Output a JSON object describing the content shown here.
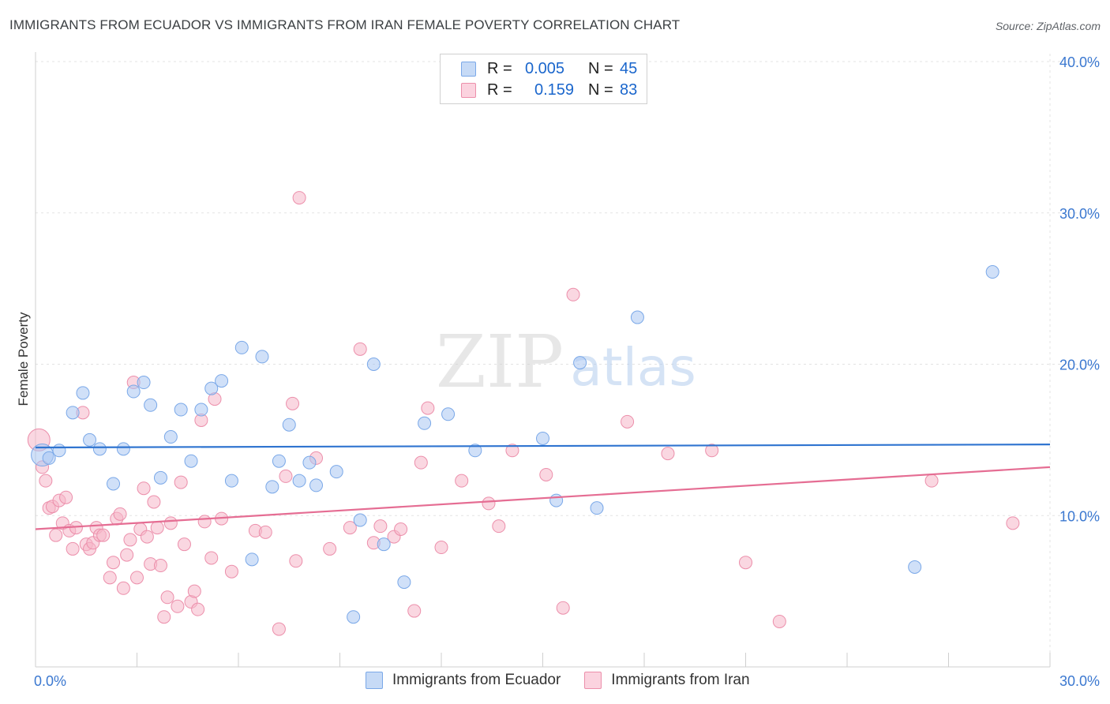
{
  "header": {
    "title": "IMMIGRANTS FROM ECUADOR VS IMMIGRANTS FROM IRAN FEMALE POVERTY CORRELATION CHART",
    "source": "Source: ZipAtlas.com"
  },
  "watermark": {
    "zip": "ZIP",
    "atlas": "atlas"
  },
  "legend": {
    "rows": [
      {
        "r_label": "R =",
        "r_value": "0.005",
        "n_label": "N =",
        "n_value": "45",
        "color": "#a9c7f2"
      },
      {
        "r_label": "R =",
        "r_value": "0.159",
        "n_label": "N =",
        "n_value": "83",
        "color": "#f6b7c9"
      }
    ]
  },
  "bottom_legend": {
    "items": [
      {
        "label": "Immigrants from Ecuador",
        "color": "#a9c7f2"
      },
      {
        "label": "Immigrants from Iran",
        "color": "#f6b7c9"
      }
    ]
  },
  "chart_data": {
    "type": "scatter",
    "xlabel": "",
    "ylabel": "Female Poverty",
    "xlim": [
      0,
      30
    ],
    "ylim": [
      0,
      40
    ],
    "x_ticks": [
      {
        "value": 0,
        "label": "0.0%"
      },
      {
        "value": 30,
        "label": "30.0%"
      }
    ],
    "y_ticks": [
      {
        "value": 10,
        "label": "10.0%"
      },
      {
        "value": 20,
        "label": "20.0%"
      },
      {
        "value": 30,
        "label": "30.0%"
      },
      {
        "value": 40,
        "label": "40.0%"
      }
    ],
    "grid": true,
    "series": [
      {
        "name": "Immigrants from Ecuador",
        "color": "#a9c7f2",
        "stroke": "#7aa8e8",
        "trend_color": "#2f74d0",
        "trend": {
          "x": [
            0,
            30
          ],
          "y": [
            14.5,
            14.7
          ]
        },
        "points": [
          [
            0.2,
            14.0
          ],
          [
            0.4,
            13.8
          ],
          [
            0.7,
            14.3
          ],
          [
            1.1,
            16.8
          ],
          [
            1.4,
            18.1
          ],
          [
            1.6,
            15.0
          ],
          [
            1.9,
            14.4
          ],
          [
            2.3,
            12.1
          ],
          [
            2.6,
            14.4
          ],
          [
            2.9,
            18.2
          ],
          [
            3.2,
            18.8
          ],
          [
            3.4,
            17.3
          ],
          [
            3.7,
            12.5
          ],
          [
            4.0,
            15.2
          ],
          [
            4.3,
            17.0
          ],
          [
            4.6,
            13.6
          ],
          [
            4.9,
            17.0
          ],
          [
            5.2,
            18.4
          ],
          [
            5.5,
            18.9
          ],
          [
            5.8,
            12.3
          ],
          [
            6.1,
            21.1
          ],
          [
            6.4,
            7.1
          ],
          [
            6.7,
            20.5
          ],
          [
            7.0,
            11.9
          ],
          [
            7.2,
            13.6
          ],
          [
            7.5,
            16.0
          ],
          [
            7.8,
            12.3
          ],
          [
            8.1,
            13.5
          ],
          [
            8.3,
            12.0
          ],
          [
            8.9,
            12.9
          ],
          [
            9.4,
            3.3
          ],
          [
            9.6,
            9.7
          ],
          [
            10.0,
            20.0
          ],
          [
            10.3,
            8.1
          ],
          [
            10.9,
            5.6
          ],
          [
            11.5,
            16.1
          ],
          [
            12.2,
            16.7
          ],
          [
            13.0,
            14.3
          ],
          [
            15.0,
            15.1
          ],
          [
            15.4,
            11.0
          ],
          [
            16.1,
            20.1
          ],
          [
            16.6,
            10.5
          ],
          [
            17.8,
            23.1
          ],
          [
            26.0,
            6.6
          ],
          [
            28.3,
            26.1
          ]
        ]
      },
      {
        "name": "Immigrants from Iran",
        "color": "#f6b7c9",
        "stroke": "#ec8fab",
        "trend_color": "#e56d93",
        "trend": {
          "x": [
            0,
            30
          ],
          "y": [
            9.1,
            13.2
          ]
        },
        "points": [
          [
            0.1,
            15.0
          ],
          [
            0.2,
            13.2
          ],
          [
            0.3,
            12.3
          ],
          [
            0.4,
            10.5
          ],
          [
            0.5,
            10.6
          ],
          [
            0.6,
            8.7
          ],
          [
            0.7,
            11.0
          ],
          [
            0.8,
            9.5
          ],
          [
            0.9,
            11.2
          ],
          [
            1.0,
            9.0
          ],
          [
            1.1,
            7.8
          ],
          [
            1.2,
            9.2
          ],
          [
            1.4,
            16.8
          ],
          [
            1.5,
            8.1
          ],
          [
            1.6,
            7.8
          ],
          [
            1.7,
            8.2
          ],
          [
            1.8,
            9.2
          ],
          [
            1.9,
            8.7
          ],
          [
            2.0,
            8.7
          ],
          [
            2.2,
            5.9
          ],
          [
            2.3,
            6.9
          ],
          [
            2.4,
            9.8
          ],
          [
            2.5,
            10.1
          ],
          [
            2.6,
            5.2
          ],
          [
            2.7,
            7.4
          ],
          [
            2.8,
            8.4
          ],
          [
            2.9,
            18.8
          ],
          [
            3.0,
            5.9
          ],
          [
            3.1,
            9.1
          ],
          [
            3.2,
            11.8
          ],
          [
            3.3,
            8.6
          ],
          [
            3.4,
            6.8
          ],
          [
            3.5,
            10.9
          ],
          [
            3.6,
            9.2
          ],
          [
            3.7,
            6.7
          ],
          [
            3.8,
            3.3
          ],
          [
            3.9,
            4.6
          ],
          [
            4.0,
            9.5
          ],
          [
            4.2,
            4.0
          ],
          [
            4.3,
            12.2
          ],
          [
            4.4,
            8.1
          ],
          [
            4.6,
            4.3
          ],
          [
            4.7,
            5.0
          ],
          [
            4.8,
            3.8
          ],
          [
            4.9,
            16.3
          ],
          [
            5.0,
            9.6
          ],
          [
            5.2,
            7.2
          ],
          [
            5.3,
            17.7
          ],
          [
            5.5,
            9.8
          ],
          [
            5.8,
            6.3
          ],
          [
            6.5,
            9.0
          ],
          [
            6.8,
            8.9
          ],
          [
            7.2,
            2.5
          ],
          [
            7.4,
            12.6
          ],
          [
            7.6,
            17.4
          ],
          [
            7.7,
            7.0
          ],
          [
            7.8,
            31.0
          ],
          [
            8.3,
            13.8
          ],
          [
            8.7,
            7.8
          ],
          [
            9.3,
            9.2
          ],
          [
            9.6,
            21.0
          ],
          [
            10.0,
            8.2
          ],
          [
            10.2,
            9.3
          ],
          [
            10.6,
            8.6
          ],
          [
            10.8,
            9.1
          ],
          [
            11.2,
            3.7
          ],
          [
            11.4,
            13.5
          ],
          [
            11.6,
            17.1
          ],
          [
            12.0,
            7.9
          ],
          [
            12.6,
            12.3
          ],
          [
            13.4,
            10.8
          ],
          [
            13.7,
            9.3
          ],
          [
            14.1,
            14.3
          ],
          [
            15.1,
            12.7
          ],
          [
            15.6,
            3.9
          ],
          [
            15.9,
            24.6
          ],
          [
            17.5,
            16.2
          ],
          [
            18.7,
            14.1
          ],
          [
            20.0,
            14.3
          ],
          [
            21.0,
            6.9
          ],
          [
            22.0,
            3.0
          ],
          [
            26.5,
            12.3
          ],
          [
            28.9,
            9.5
          ]
        ]
      }
    ]
  }
}
